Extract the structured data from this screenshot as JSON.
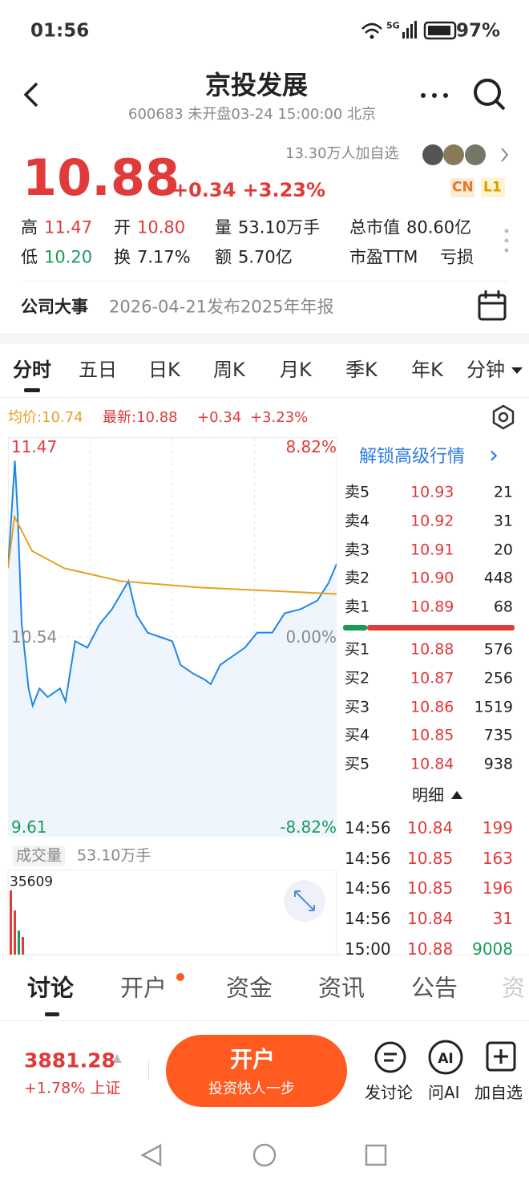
{
  "status": {
    "time": "01:56",
    "network": "5G",
    "battery": "97%"
  },
  "header": {
    "title": "京投发展",
    "subtitle": "600683 未开盘03-24 15:00:00 北京",
    "followers": "13.30万人加自选",
    "badges": [
      "CN",
      "L1"
    ]
  },
  "quote": {
    "price": "10.88",
    "change": "+0.34 +3.23%"
  },
  "stats": [
    [
      "高",
      "11.47"
    ],
    [
      "开",
      "10.80"
    ],
    [
      "量",
      "53.10万手"
    ],
    [
      "总市值",
      "80.60亿"
    ],
    [
      "低",
      "10.20"
    ],
    [
      "换",
      "7.17%"
    ],
    [
      "额",
      "5.70亿"
    ],
    [
      "市盈TTM",
      "亏损"
    ]
  ],
  "event": {
    "label": "公司大事",
    "text": "2026-04-21发布2025年年报"
  },
  "tabs": [
    "分时",
    "五日",
    "日K",
    "周K",
    "月K",
    "季K",
    "年K",
    "分钟"
  ],
  "chart": {
    "type": "line",
    "legend": {
      "avg": "均价:10.74",
      "latest": "最新:10.88",
      "change": "+0.34",
      "pct": "+3.23%"
    },
    "xlim": [
      0,
      240
    ],
    "ylim": [
      9.61,
      11.47
    ],
    "yticks": [
      9.61,
      10.54,
      11.47
    ],
    "y2lim": [
      -8.82,
      8.82
    ],
    "y2ticks": [
      {
        "value": -8.82,
        "label": "-8.82%"
      },
      {
        "value": 0,
        "label": "0.00%"
      },
      {
        "value": 8.82,
        "label": "8.82%"
      }
    ],
    "series": [
      {
        "color": "#1e88e5",
        "x": [
          0,
          5,
          7,
          10,
          15,
          18,
          23,
          29,
          38,
          42,
          49,
          58,
          67,
          76,
          88,
          94,
          102,
          111,
          120,
          126,
          135,
          144,
          148,
          155,
          164,
          173,
          182,
          193,
          202,
          214,
          226,
          234,
          240
        ],
        "values": [
          10.86,
          11.36,
          11.12,
          10.6,
          10.3,
          10.22,
          10.3,
          10.26,
          10.3,
          10.24,
          10.52,
          10.49,
          10.6,
          10.67,
          10.8,
          10.64,
          10.56,
          10.54,
          10.52,
          10.41,
          10.37,
          10.34,
          10.32,
          10.41,
          10.45,
          10.49,
          10.56,
          10.56,
          10.65,
          10.67,
          10.71,
          10.79,
          10.88
        ]
      },
      {
        "color": "#e8a020",
        "x": [
          0,
          4.7,
          17.6,
          41,
          82,
          140,
          240
        ],
        "values": [
          10.86,
          11.1,
          10.94,
          10.86,
          10.8,
          10.77,
          10.74
        ]
      }
    ]
  },
  "volume": {
    "label": "成交量",
    "total": "53.10万手",
    "max": "35609"
  },
  "orderbook": {
    "unlock": "解锁高级行情",
    "asks": [
      [
        "卖5",
        "10.93",
        "21"
      ],
      [
        "卖4",
        "10.92",
        "31"
      ],
      [
        "卖3",
        "10.91",
        "20"
      ],
      [
        "卖2",
        "10.90",
        "448"
      ],
      [
        "卖1",
        "10.89",
        "68"
      ]
    ],
    "bids": [
      [
        "买1",
        "10.88",
        "576"
      ],
      [
        "买2",
        "10.87",
        "256"
      ],
      [
        "买3",
        "10.86",
        "1519"
      ],
      [
        "买4",
        "10.85",
        "735"
      ],
      [
        "买5",
        "10.84",
        "938"
      ]
    ]
  },
  "trades": {
    "title": "明细",
    "rows": [
      [
        "14:56",
        "10.84",
        "199"
      ],
      [
        "14:56",
        "10.85",
        "163"
      ],
      [
        "14:56",
        "10.85",
        "196"
      ],
      [
        "14:56",
        "10.84",
        "31"
      ],
      [
        "15:00",
        "10.88",
        "9008"
      ]
    ]
  },
  "bottom_tabs": [
    "讨论",
    "开户",
    "资金",
    "资讯",
    "公告",
    "资"
  ],
  "footer": {
    "index": "3881.28",
    "index_change": "+1.78% 上证",
    "button": "开户",
    "button_sub": "投资快人一步",
    "actions": [
      "发讨论",
      "问AI",
      "加自选"
    ]
  }
}
